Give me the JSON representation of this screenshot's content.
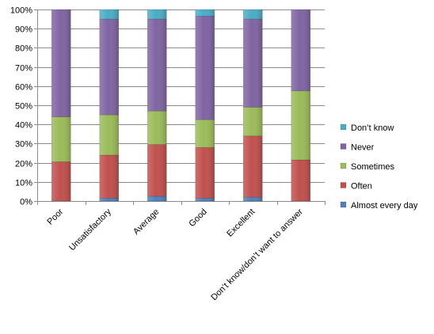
{
  "chart_data": {
    "type": "bar",
    "stacked": true,
    "percent": true,
    "categories": [
      "Poor",
      "Unsatisfactory",
      "Average",
      "Good",
      "Excellent",
      "Don’t know/don’t want to answer"
    ],
    "series": [
      {
        "name": "Almost every day",
        "color": "#4F81BD",
        "values": [
          0,
          1.5,
          2.5,
          1.5,
          2,
          0
        ]
      },
      {
        "name": "Often",
        "color": "#C0504D",
        "values": [
          20.5,
          22.5,
          27,
          26.5,
          32,
          21.5
        ]
      },
      {
        "name": "Sometimes",
        "color": "#9BBB59",
        "values": [
          23.5,
          21,
          17.5,
          14.5,
          15,
          36
        ]
      },
      {
        "name": "Never",
        "color": "#8064A2",
        "values": [
          56,
          50,
          48,
          54,
          46,
          42.5
        ]
      },
      {
        "name": "Don’t know",
        "color": "#4BACC6",
        "values": [
          0,
          5,
          5,
          3.5,
          5,
          0
        ]
      }
    ],
    "y_ticks": [
      "0%",
      "10%",
      "20%",
      "30%",
      "40%",
      "50%",
      "60%",
      "70%",
      "80%",
      "90%",
      "100%"
    ],
    "ylim": [
      0,
      100
    ],
    "grid": true,
    "legend_position": "right",
    "legend_order": [
      4,
      3,
      2,
      1,
      0
    ]
  }
}
